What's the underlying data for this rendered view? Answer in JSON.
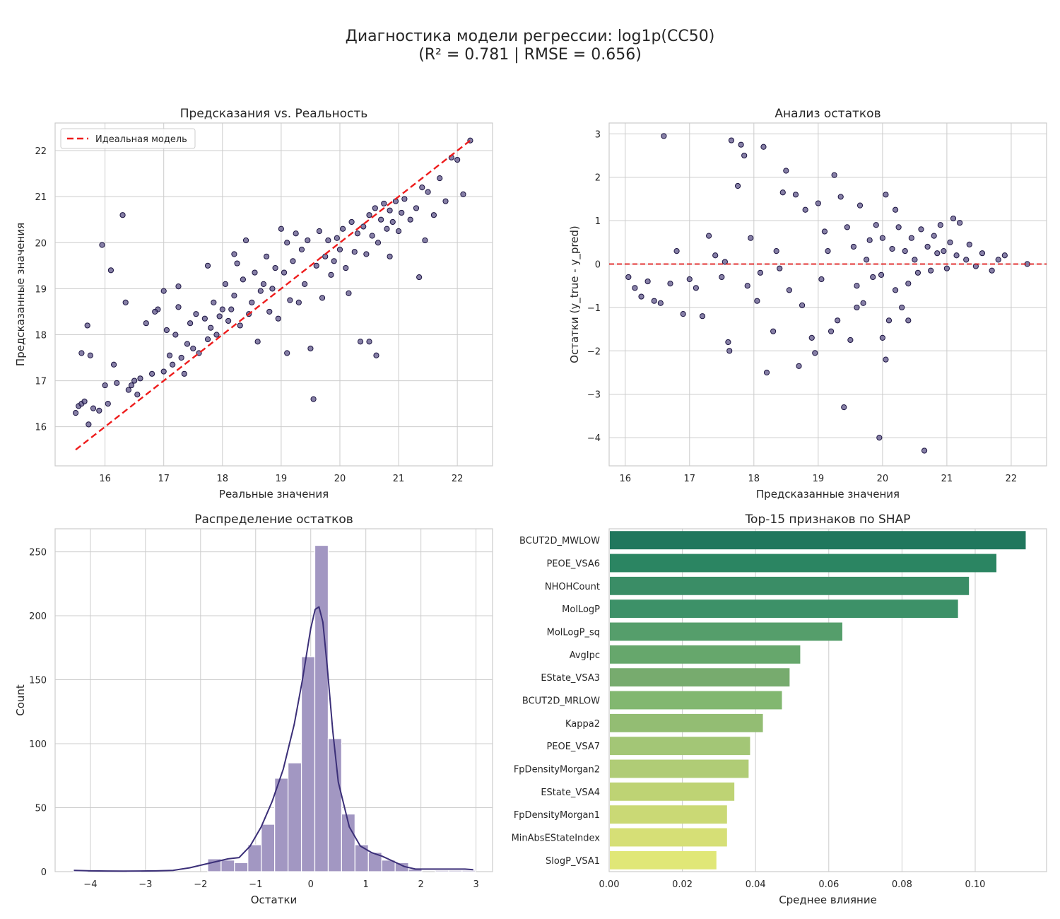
{
  "figure": {
    "title_line1": "Диагностика модели регрессии: log1p(CC50)",
    "title_line2": "(R² = 0.781 | RMSE = 0.656)"
  },
  "colors": {
    "grid": "#cccccc",
    "spine": "#cccccc",
    "point_fill": "#5d5488",
    "point_edge": "#1a1340",
    "ref_line": "#ee1c1c",
    "hist_fill": "#a297c2",
    "kde_line": "#3b2f78"
  },
  "chart_data": [
    {
      "type": "scatter",
      "title": "Предсказания vs. Реальность",
      "xlabel": "Реальные значения",
      "ylabel": "Предсказанные значения",
      "xlim": [
        15.15,
        22.6
      ],
      "ylim": [
        15.15,
        22.6
      ],
      "xticks": [
        16,
        17,
        18,
        19,
        20,
        21,
        22
      ],
      "yticks": [
        16,
        17,
        18,
        19,
        20,
        21,
        22
      ],
      "grid": true,
      "legend": {
        "position": "upper-left",
        "entries": [
          "Идеальная модель"
        ]
      },
      "reference_line": {
        "name": "Идеальная модель",
        "from": [
          15.5,
          15.5
        ],
        "to": [
          22.22,
          22.22
        ],
        "style": "dashed"
      },
      "points": [
        [
          15.5,
          16.3
        ],
        [
          15.55,
          16.45
        ],
        [
          15.6,
          16.5
        ],
        [
          15.6,
          17.6
        ],
        [
          15.65,
          16.55
        ],
        [
          15.7,
          18.2
        ],
        [
          15.72,
          16.05
        ],
        [
          15.75,
          17.55
        ],
        [
          15.8,
          16.4
        ],
        [
          15.9,
          16.35
        ],
        [
          15.95,
          19.95
        ],
        [
          16.0,
          16.9
        ],
        [
          16.05,
          16.5
        ],
        [
          16.1,
          19.4
        ],
        [
          16.15,
          17.35
        ],
        [
          16.2,
          16.95
        ],
        [
          16.3,
          20.6
        ],
        [
          16.35,
          18.7
        ],
        [
          16.4,
          16.8
        ],
        [
          16.45,
          16.9
        ],
        [
          16.5,
          17.0
        ],
        [
          16.55,
          16.7
        ],
        [
          16.6,
          17.05
        ],
        [
          16.7,
          18.25
        ],
        [
          16.8,
          17.15
        ],
        [
          16.9,
          18.55
        ],
        [
          17.0,
          18.95
        ],
        [
          17.0,
          17.2
        ],
        [
          17.05,
          18.1
        ],
        [
          17.1,
          17.55
        ],
        [
          17.15,
          17.35
        ],
        [
          17.2,
          18.0
        ],
        [
          17.25,
          18.6
        ],
        [
          17.3,
          17.5
        ],
        [
          17.35,
          17.15
        ],
        [
          17.4,
          17.8
        ],
        [
          17.45,
          18.25
        ],
        [
          17.5,
          17.7
        ],
        [
          17.55,
          18.45
        ],
        [
          17.6,
          17.6
        ],
        [
          17.7,
          18.35
        ],
        [
          17.75,
          17.9
        ],
        [
          17.8,
          18.15
        ],
        [
          17.85,
          18.7
        ],
        [
          17.9,
          18.0
        ],
        [
          17.95,
          18.4
        ],
        [
          18.0,
          18.55
        ],
        [
          18.05,
          19.1
        ],
        [
          18.1,
          18.3
        ],
        [
          18.15,
          18.55
        ],
        [
          18.2,
          18.85
        ],
        [
          18.25,
          19.55
        ],
        [
          18.3,
          18.2
        ],
        [
          18.35,
          19.2
        ],
        [
          18.4,
          20.05
        ],
        [
          18.45,
          18.45
        ],
        [
          18.5,
          18.7
        ],
        [
          18.55,
          19.35
        ],
        [
          18.6,
          17.85
        ],
        [
          18.65,
          18.95
        ],
        [
          18.7,
          19.1
        ],
        [
          18.75,
          19.7
        ],
        [
          18.8,
          18.5
        ],
        [
          18.85,
          19.0
        ],
        [
          18.9,
          19.45
        ],
        [
          18.95,
          18.35
        ],
        [
          19.0,
          20.3
        ],
        [
          19.05,
          19.35
        ],
        [
          19.1,
          20.0
        ],
        [
          19.15,
          18.75
        ],
        [
          19.2,
          19.6
        ],
        [
          19.25,
          20.2
        ],
        [
          19.3,
          18.7
        ],
        [
          19.35,
          19.85
        ],
        [
          19.4,
          19.1
        ],
        [
          19.45,
          20.05
        ],
        [
          19.5,
          17.7
        ],
        [
          19.55,
          16.6
        ],
        [
          19.6,
          19.5
        ],
        [
          19.65,
          20.25
        ],
        [
          19.7,
          18.8
        ],
        [
          19.75,
          19.7
        ],
        [
          19.8,
          20.05
        ],
        [
          19.85,
          19.3
        ],
        [
          19.9,
          19.6
        ],
        [
          19.95,
          20.1
        ],
        [
          20.0,
          19.85
        ],
        [
          20.05,
          20.3
        ],
        [
          20.1,
          19.45
        ],
        [
          20.15,
          18.9
        ],
        [
          20.2,
          20.45
        ],
        [
          20.25,
          19.8
        ],
        [
          20.3,
          20.2
        ],
        [
          20.35,
          17.85
        ],
        [
          20.4,
          20.35
        ],
        [
          20.45,
          19.75
        ],
        [
          20.5,
          20.6
        ],
        [
          20.55,
          20.15
        ],
        [
          20.6,
          20.75
        ],
        [
          20.65,
          20.0
        ],
        [
          20.7,
          20.5
        ],
        [
          20.75,
          20.85
        ],
        [
          20.8,
          20.3
        ],
        [
          20.85,
          20.7
        ],
        [
          20.9,
          20.45
        ],
        [
          20.95,
          20.9
        ],
        [
          21.0,
          20.25
        ],
        [
          21.05,
          20.65
        ],
        [
          21.1,
          20.95
        ],
        [
          21.2,
          20.5
        ],
        [
          21.3,
          20.75
        ],
        [
          21.35,
          19.25
        ],
        [
          21.4,
          21.2
        ],
        [
          21.45,
          20.05
        ],
        [
          21.5,
          21.1
        ],
        [
          21.6,
          20.6
        ],
        [
          21.7,
          21.4
        ],
        [
          21.8,
          20.9
        ],
        [
          21.9,
          21.85
        ],
        [
          22.0,
          21.8
        ],
        [
          22.1,
          21.05
        ],
        [
          22.22,
          22.22
        ],
        [
          20.62,
          17.55
        ],
        [
          20.5,
          17.85
        ],
        [
          19.1,
          17.6
        ],
        [
          17.75,
          19.5
        ],
        [
          17.25,
          19.05
        ],
        [
          16.85,
          18.5
        ],
        [
          18.2,
          19.75
        ],
        [
          20.85,
          19.7
        ]
      ]
    },
    {
      "type": "scatter",
      "title": "Анализ остатков",
      "xlabel": "Предсказанные значения",
      "ylabel": "Остатки (y_true - y_pred)",
      "xlim": [
        15.75,
        22.55
      ],
      "ylim": [
        -4.65,
        3.25
      ],
      "xticks": [
        16,
        17,
        18,
        19,
        20,
        21,
        22
      ],
      "yticks": [
        -4,
        -3,
        -2,
        -1,
        0,
        1,
        2,
        3
      ],
      "grid": true,
      "reference_line": {
        "y": 0,
        "style": "dashed"
      },
      "points": [
        [
          16.05,
          -0.3
        ],
        [
          16.15,
          -0.55
        ],
        [
          16.25,
          -0.75
        ],
        [
          16.35,
          -0.4
        ],
        [
          16.45,
          -0.85
        ],
        [
          16.55,
          -0.9
        ],
        [
          16.6,
          2.95
        ],
        [
          16.7,
          -0.45
        ],
        [
          16.8,
          0.3
        ],
        [
          16.9,
          -1.15
        ],
        [
          17.0,
          -0.35
        ],
        [
          17.1,
          -0.55
        ],
        [
          17.2,
          -1.2
        ],
        [
          17.3,
          0.65
        ],
        [
          17.4,
          0.2
        ],
        [
          17.5,
          -0.3
        ],
        [
          17.6,
          -1.8
        ],
        [
          17.62,
          -2.0
        ],
        [
          17.65,
          2.85
        ],
        [
          17.75,
          1.8
        ],
        [
          17.8,
          2.75
        ],
        [
          17.85,
          2.5
        ],
        [
          17.95,
          0.6
        ],
        [
          18.05,
          -0.85
        ],
        [
          18.15,
          2.7
        ],
        [
          18.2,
          -2.5
        ],
        [
          18.3,
          -1.55
        ],
        [
          18.35,
          0.3
        ],
        [
          18.45,
          1.65
        ],
        [
          18.5,
          2.15
        ],
        [
          18.55,
          -0.6
        ],
        [
          18.65,
          1.6
        ],
        [
          18.7,
          -2.35
        ],
        [
          18.8,
          1.25
        ],
        [
          18.9,
          -1.7
        ],
        [
          18.95,
          -2.05
        ],
        [
          19.0,
          1.4
        ],
        [
          19.05,
          -0.35
        ],
        [
          19.1,
          0.75
        ],
        [
          19.2,
          -1.55
        ],
        [
          19.25,
          2.05
        ],
        [
          19.3,
          -1.3
        ],
        [
          19.35,
          1.55
        ],
        [
          19.4,
          -3.3
        ],
        [
          19.45,
          0.85
        ],
        [
          19.5,
          -1.75
        ],
        [
          19.55,
          0.4
        ],
        [
          19.6,
          -0.5
        ],
        [
          19.65,
          1.35
        ],
        [
          19.7,
          -0.9
        ],
        [
          19.75,
          0.1
        ],
        [
          19.8,
          0.55
        ],
        [
          19.85,
          -0.3
        ],
        [
          19.9,
          0.9
        ],
        [
          19.95,
          -4.0
        ],
        [
          20.0,
          0.6
        ],
        [
          20.05,
          1.6
        ],
        [
          20.1,
          -1.3
        ],
        [
          20.15,
          0.35
        ],
        [
          20.2,
          -0.6
        ],
        [
          20.25,
          0.85
        ],
        [
          20.3,
          -1.0
        ],
        [
          20.35,
          0.3
        ],
        [
          20.4,
          -1.3
        ],
        [
          20.45,
          0.6
        ],
        [
          20.5,
          0.1
        ],
        [
          20.55,
          -0.2
        ],
        [
          20.6,
          0.8
        ],
        [
          20.65,
          -4.3
        ],
        [
          20.7,
          0.4
        ],
        [
          20.75,
          -0.15
        ],
        [
          20.8,
          0.65
        ],
        [
          20.85,
          0.25
        ],
        [
          20.9,
          0.9
        ],
        [
          20.95,
          0.3
        ],
        [
          21.0,
          -0.1
        ],
        [
          21.05,
          0.5
        ],
        [
          21.1,
          1.05
        ],
        [
          21.15,
          0.2
        ],
        [
          21.2,
          0.95
        ],
        [
          21.3,
          0.1
        ],
        [
          21.35,
          0.45
        ],
        [
          21.45,
          -0.05
        ],
        [
          21.55,
          0.25
        ],
        [
          21.7,
          -0.15
        ],
        [
          21.8,
          0.1
        ],
        [
          21.9,
          0.2
        ],
        [
          22.25,
          0.0
        ],
        [
          18.75,
          -0.95
        ],
        [
          19.15,
          0.3
        ],
        [
          18.1,
          -0.2
        ],
        [
          17.55,
          0.05
        ],
        [
          17.9,
          -0.5
        ],
        [
          18.4,
          -0.1
        ],
        [
          19.6,
          -1.0
        ],
        [
          20.0,
          -1.7
        ],
        [
          20.05,
          -2.2
        ],
        [
          19.98,
          -0.25
        ],
        [
          20.2,
          1.25
        ],
        [
          20.4,
          -0.45
        ]
      ]
    },
    {
      "type": "bar",
      "title": "Распределение остатков",
      "xlabel": "Остатки",
      "ylabel": "Count",
      "xlim": [
        -4.64,
        3.3
      ],
      "ylim": [
        0,
        268
      ],
      "xticks": [
        -4,
        -3,
        -2,
        -1,
        0,
        1,
        2,
        3
      ],
      "yticks": [
        0,
        50,
        100,
        150,
        200,
        250
      ],
      "grid": true,
      "bin_width": 0.243,
      "bin_starts": [
        -4.3,
        -4.057,
        -3.814,
        -3.571,
        -3.328,
        -3.085,
        -2.842,
        -2.599,
        -2.356,
        -2.113,
        -1.87,
        -1.627,
        -1.384,
        -1.141,
        -0.898,
        -0.655,
        -0.412,
        -0.169,
        0.074,
        0.317,
        0.56,
        0.803,
        1.046,
        1.289,
        1.532,
        1.775,
        2.018,
        2.261,
        2.504,
        2.747
      ],
      "values": [
        1,
        0,
        0,
        0,
        1,
        0,
        0,
        0,
        0,
        0,
        10,
        9,
        7,
        21,
        37,
        73,
        85,
        168,
        255,
        104,
        45,
        21,
        15,
        9,
        7,
        2,
        0,
        1,
        1,
        1
      ],
      "kde": {
        "x": [
          -4.3,
          -4.0,
          -3.7,
          -3.4,
          -3.1,
          -2.8,
          -2.5,
          -2.2,
          -1.9,
          -1.7,
          -1.5,
          -1.3,
          -1.1,
          -0.9,
          -0.7,
          -0.5,
          -0.3,
          -0.15,
          0.0,
          0.08,
          0.15,
          0.22,
          0.3,
          0.4,
          0.5,
          0.7,
          0.9,
          1.1,
          1.3,
          1.5,
          1.7,
          1.9,
          2.2,
          2.5,
          2.8,
          2.95
        ],
        "y": [
          1,
          0.6,
          0.5,
          0.4,
          0.5,
          0.6,
          1,
          3,
          6,
          8,
          10,
          11,
          20,
          35,
          55,
          80,
          115,
          150,
          190,
          205,
          207,
          195,
          160,
          110,
          70,
          35,
          20,
          15,
          12,
          8,
          4,
          2,
          2,
          2,
          2,
          1.5
        ]
      }
    },
    {
      "type": "bar",
      "orientation": "horizontal",
      "title": "Top-15 признаков по SHAP",
      "xlabel": "Среднее влияние",
      "xlim": [
        0,
        0.1195
      ],
      "xticks": [
        0.0,
        0.02,
        0.04,
        0.06,
        0.08,
        0.1
      ],
      "grid": true,
      "categories": [
        "BCUT2D_MWLOW",
        "PEOE_VSA6",
        "NHOHCount",
        "MolLogP",
        "MolLogP_sq",
        "AvgIpc",
        "EState_VSA3",
        "BCUT2D_MRLOW",
        "Kappa2",
        "PEOE_VSA7",
        "FpDensityMorgan2",
        "EState_VSA4",
        "FpDensityMorgan1",
        "MinAbsEStateIndex",
        "SlogP_VSA1"
      ],
      "values": [
        0.1138,
        0.1058,
        0.0983,
        0.0953,
        0.0637,
        0.0522,
        0.0493,
        0.0472,
        0.042,
        0.0385,
        0.0381,
        0.0342,
        0.0322,
        0.0322,
        0.0293
      ],
      "bar_colors": [
        "#20775d",
        "#2b8562",
        "#3a8d66",
        "#3d9168",
        "#559e6b",
        "#66a76c",
        "#77ab6e",
        "#82b770",
        "#93bd73",
        "#a3c676",
        "#b0cc76",
        "#bed374",
        "#cad975",
        "#d6df76",
        "#e0e777"
      ]
    }
  ]
}
